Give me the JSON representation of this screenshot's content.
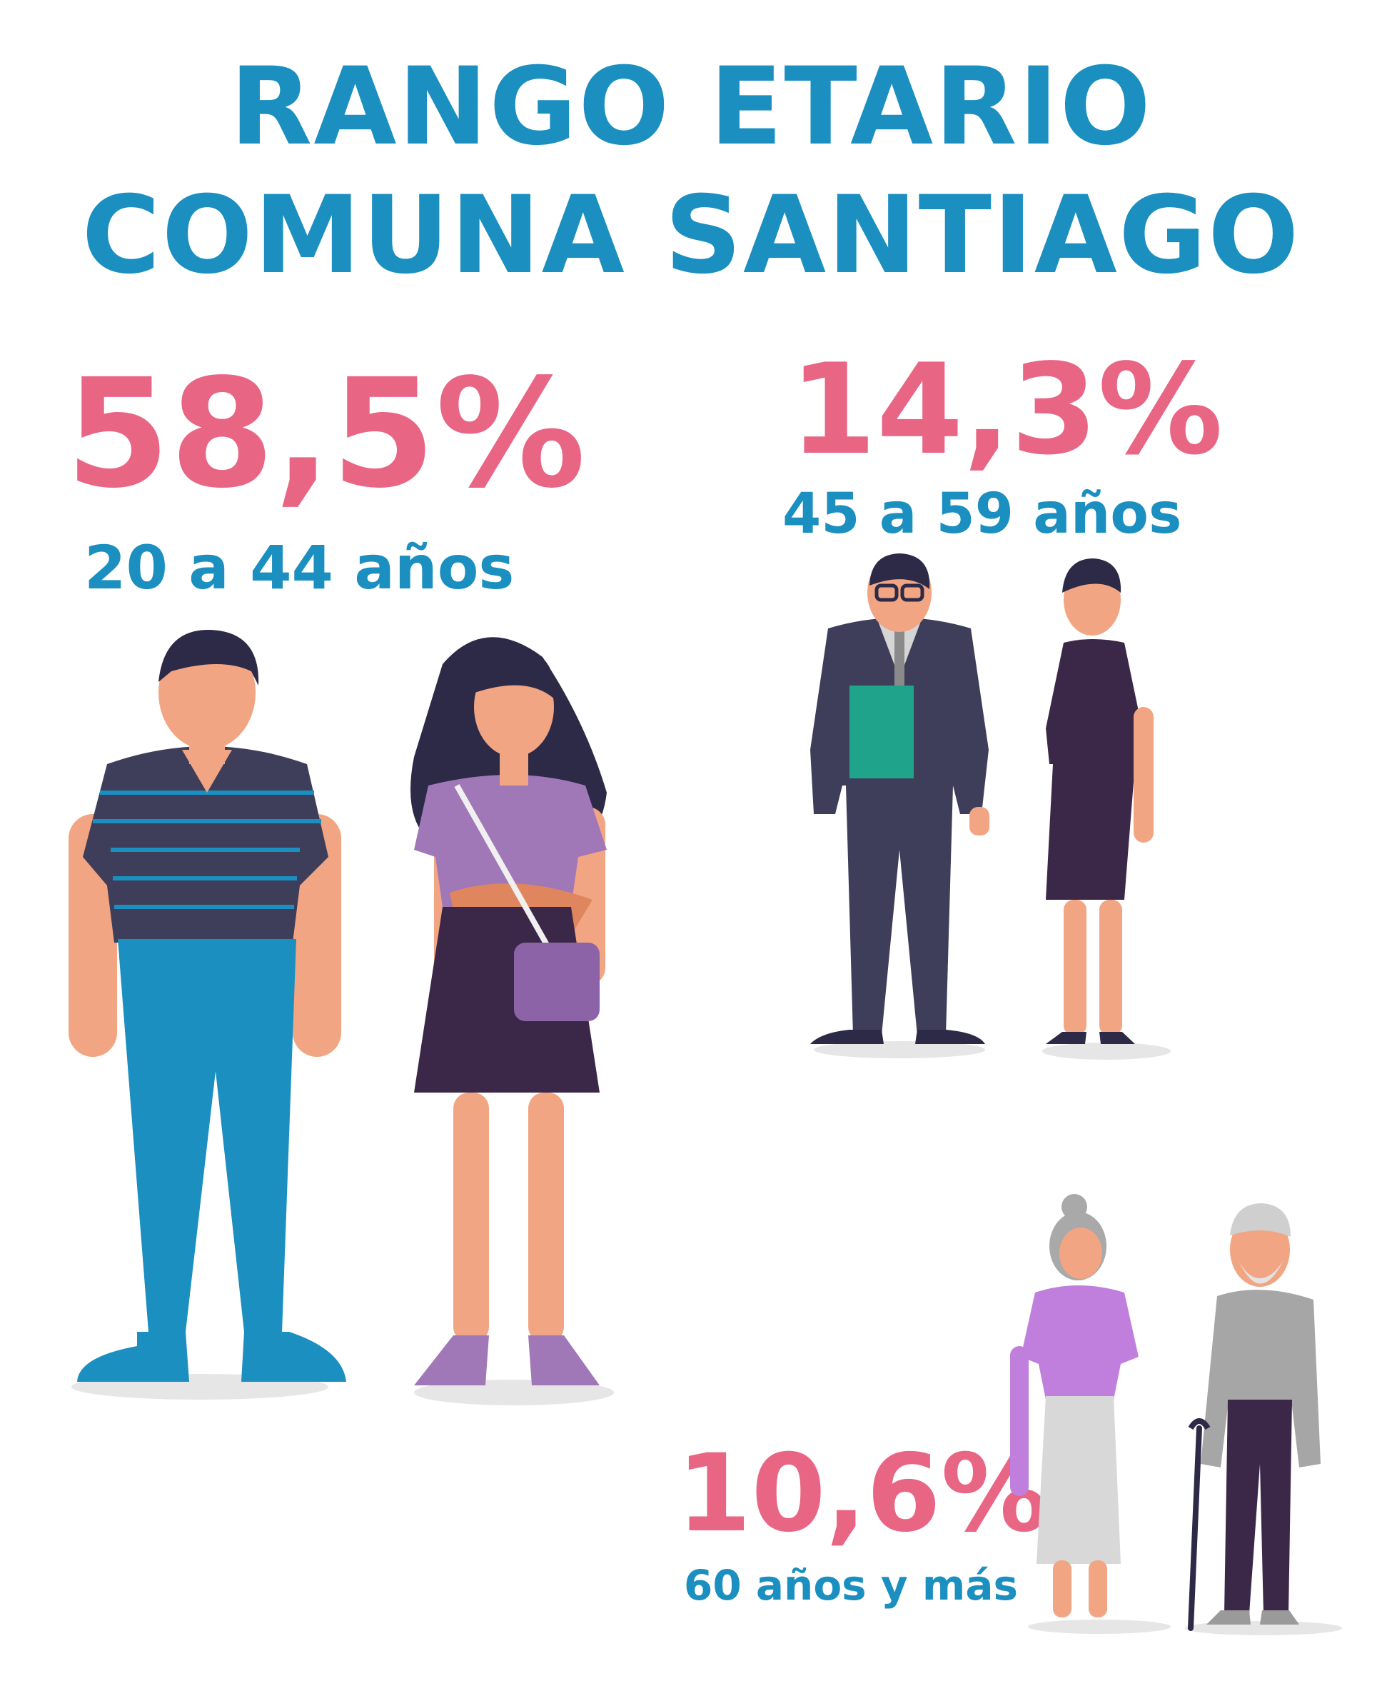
{
  "title": {
    "line1": "RANGO ETARIO",
    "line2": "COMUNA SANTIAGO"
  },
  "groups": [
    {
      "percent": "58,5%",
      "range": "20 a 44 años",
      "illustration": "young-adults-icon"
    },
    {
      "percent": "14,3%",
      "range": "45 a 59 años",
      "illustration": "middle-aged-adults-icon"
    },
    {
      "percent": "10,6%",
      "range": "60 años y más",
      "illustration": "elderly-couple-icon"
    }
  ],
  "colors": {
    "title": "#1a8fc0",
    "percent": "#e96584",
    "range": "#1a8fc0",
    "background": "#ffffff"
  }
}
